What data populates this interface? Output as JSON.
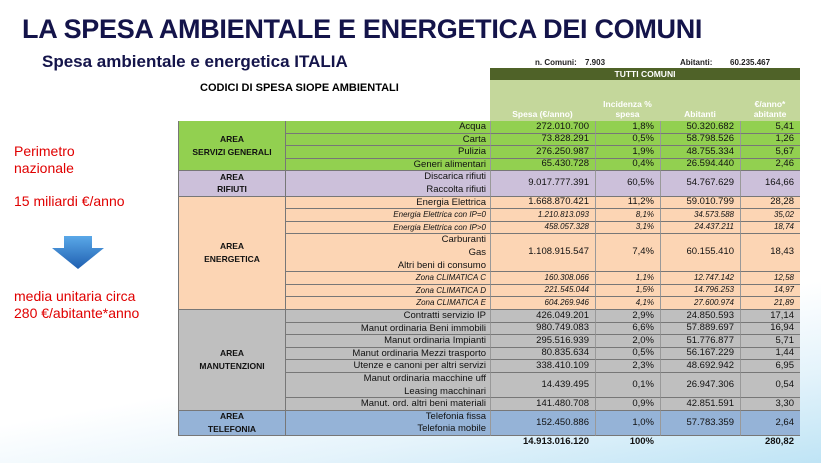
{
  "title": "LA SPESA AMBIENTALE E ENERGETICA DEI COMUNI",
  "subtitle": "Spesa ambientale e energetica ITALIA",
  "info": {
    "comuni_label": "n. Comuni:",
    "comuni": "7.903",
    "abitanti_label": "Abitanti:",
    "abitanti": "60.235.467"
  },
  "side": {
    "perimetro": "Perimetro nazionale",
    "totale": "15 miliardi €/anno",
    "media": "media unitaria circa 280 €/abitante*anno"
  },
  "table": {
    "caption": "CODICI DI SPESA SIOPE AMBIENTALI",
    "group_header": "TUTTI COMUNI",
    "columns": [
      "Spesa (€/anno)",
      "Incidenza % spesa",
      "Abitanti",
      "€/anno* abitante"
    ],
    "groups": [
      {
        "area": [
          "AREA",
          "SERVIZI GENERALI"
        ],
        "rows": [
          {
            "labels": [
              "Acqua"
            ],
            "values": [
              "272.010.700",
              "1,8%",
              "50.320.682",
              "5,41"
            ]
          },
          {
            "labels": [
              "Carta"
            ],
            "values": [
              "73.828.291",
              "0,5%",
              "58.798.526",
              "1,26"
            ]
          },
          {
            "labels": [
              "Pulizia"
            ],
            "values": [
              "276.250.987",
              "1,9%",
              "48.755.334",
              "5,67"
            ]
          },
          {
            "labels": [
              "Generi alimentari"
            ],
            "values": [
              "65.430.728",
              "0,4%",
              "26.594.440",
              "2,46"
            ]
          }
        ]
      },
      {
        "area": [
          "AREA",
          "RIFIUTI"
        ],
        "rows": [
          {
            "labels": [
              "Discarica rifiuti",
              "Raccolta rifiuti"
            ],
            "values": [
              "9.017.777.391",
              "60,5%",
              "54.767.629",
              "164,66"
            ]
          }
        ]
      },
      {
        "area": [
          "AREA",
          "ENERGETICA"
        ],
        "rows": [
          {
            "labels": [
              "Energia Elettrica"
            ],
            "values": [
              "1.668.870.421",
              "11,2%",
              "59.010.799",
              "28,28"
            ]
          },
          {
            "labels": [
              "Energia Elettrica con IP=0"
            ],
            "values": [
              "1.210.813.093",
              "8,1%",
              "34.573.588",
              "35,02"
            ]
          },
          {
            "labels": [
              "Energia Elettrica con IP>0"
            ],
            "values": [
              "458.057.328",
              "3,1%",
              "24.437.211",
              "18,74"
            ]
          },
          {
            "labels": [
              "Carburanti",
              "Gas",
              "Altri beni di consumo"
            ],
            "values": [
              "1.108.915.547",
              "7,4%",
              "60.155.410",
              "18,43"
            ]
          },
          {
            "labels": [
              "Zona CLIMATICA C"
            ],
            "values": [
              "160.308.066",
              "1,1%",
              "12.747.142",
              "12,58"
            ]
          },
          {
            "labels": [
              "Zona CLIMATICA D"
            ],
            "values": [
              "221.545.044",
              "1,5%",
              "14.796.253",
              "14,97"
            ]
          },
          {
            "labels": [
              "Zona CLIMATICA E"
            ],
            "values": [
              "604.269.946",
              "4,1%",
              "27.600.974",
              "21,89"
            ]
          }
        ]
      },
      {
        "area": [
          "AREA",
          "MANUTENZIONI"
        ],
        "rows": [
          {
            "labels": [
              "Contratti servizio IP"
            ],
            "values": [
              "426.049.201",
              "2,9%",
              "24.850.593",
              "17,14"
            ]
          },
          {
            "labels": [
              "Manut ordinaria Beni immobili"
            ],
            "values": [
              "980.749.083",
              "6,6%",
              "57.889.697",
              "16,94"
            ]
          },
          {
            "labels": [
              "Manut ordinaria Impianti"
            ],
            "values": [
              "295.516.939",
              "2,0%",
              "51.776.877",
              "5,71"
            ]
          },
          {
            "labels": [
              "Manut ordinaria Mezzi trasporto"
            ],
            "values": [
              "80.835.634",
              "0,5%",
              "56.167.229",
              "1,44"
            ]
          },
          {
            "labels": [
              "Utenze e canoni per altri servizi"
            ],
            "values": [
              "338.410.109",
              "2,3%",
              "48.692.942",
              "6,95"
            ]
          },
          {
            "labels": [
              "Manut ordinaria  macchine uff",
              "Leasing macchinari"
            ],
            "values": [
              "14.439.495",
              "0,1%",
              "26.947.306",
              "0,54"
            ]
          },
          {
            "labels": [
              "Manut. ord. altri beni materiali"
            ],
            "values": [
              "141.480.708",
              "0,9%",
              "42.851.591",
              "3,30"
            ]
          }
        ]
      },
      {
        "area": [
          "AREA",
          "TELEFONIA"
        ],
        "rows": [
          {
            "labels": [
              "Telefonia fissa",
              "Telefonia mobile"
            ],
            "values": [
              "152.450.886",
              "1,0%",
              "57.783.359",
              "2,64"
            ]
          }
        ]
      }
    ],
    "totals": [
      "14.913.016.120",
      "100%",
      "280,82"
    ]
  }
}
